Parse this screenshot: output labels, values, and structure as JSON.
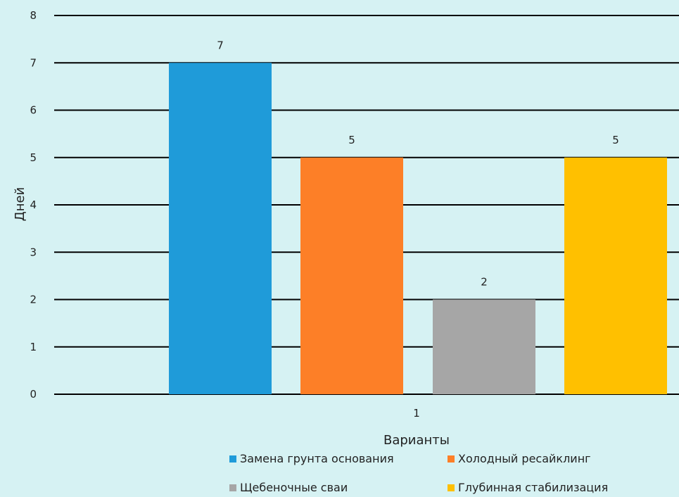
{
  "chart_data": {
    "type": "bar",
    "title": "",
    "xlabel": "Варианты",
    "ylabel": "Дней",
    "categories": [
      "1"
    ],
    "ylim": [
      0,
      8
    ],
    "yticks": [
      "0",
      "1",
      "2",
      "3",
      "4",
      "5",
      "6",
      "7",
      "8"
    ],
    "grid": true,
    "legend_position": "bottom",
    "series": [
      {
        "name": "Замена грунта основания",
        "values": [
          7
        ],
        "color": "#1f9bd9"
      },
      {
        "name": "Холодный ресайклинг",
        "values": [
          5
        ],
        "color": "#fd7f27"
      },
      {
        "name": "Щебеночные сваи",
        "values": [
          2
        ],
        "color": "#a6a6a6"
      },
      {
        "name": "Глубинная стабилизация",
        "values": [
          5
        ],
        "color": "#ffc000"
      }
    ]
  }
}
